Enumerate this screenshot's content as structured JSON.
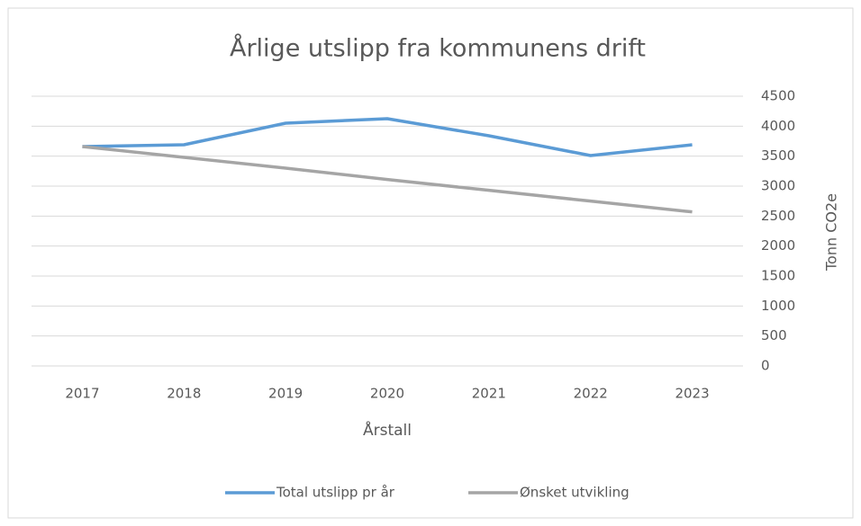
{
  "chart_data": {
    "type": "line",
    "title": "Årlige utslipp fra kommunens drift",
    "x_label": "Årstall",
    "y_label": "Tonn CO2e",
    "categories": [
      "2017",
      "2018",
      "2019",
      "2020",
      "2021",
      "2022",
      "2023"
    ],
    "series": [
      {
        "name": "Total utslipp pr år",
        "color": "#5b9bd5",
        "values": [
          3660,
          3690,
          4050,
          4125,
          3840,
          3510,
          3690
        ]
      },
      {
        "name": "Ønsket utvikling",
        "color": "#a5a5a5",
        "values": [
          3660,
          3480,
          3300,
          3110,
          2930,
          2750,
          2570
        ]
      }
    ],
    "ylim": [
      0,
      4500
    ],
    "yticks": [
      0,
      500,
      1000,
      1500,
      2000,
      2500,
      3000,
      3500,
      4000,
      4500
    ],
    "y_axis_side": "right",
    "grid": true,
    "legend": "bottom"
  }
}
